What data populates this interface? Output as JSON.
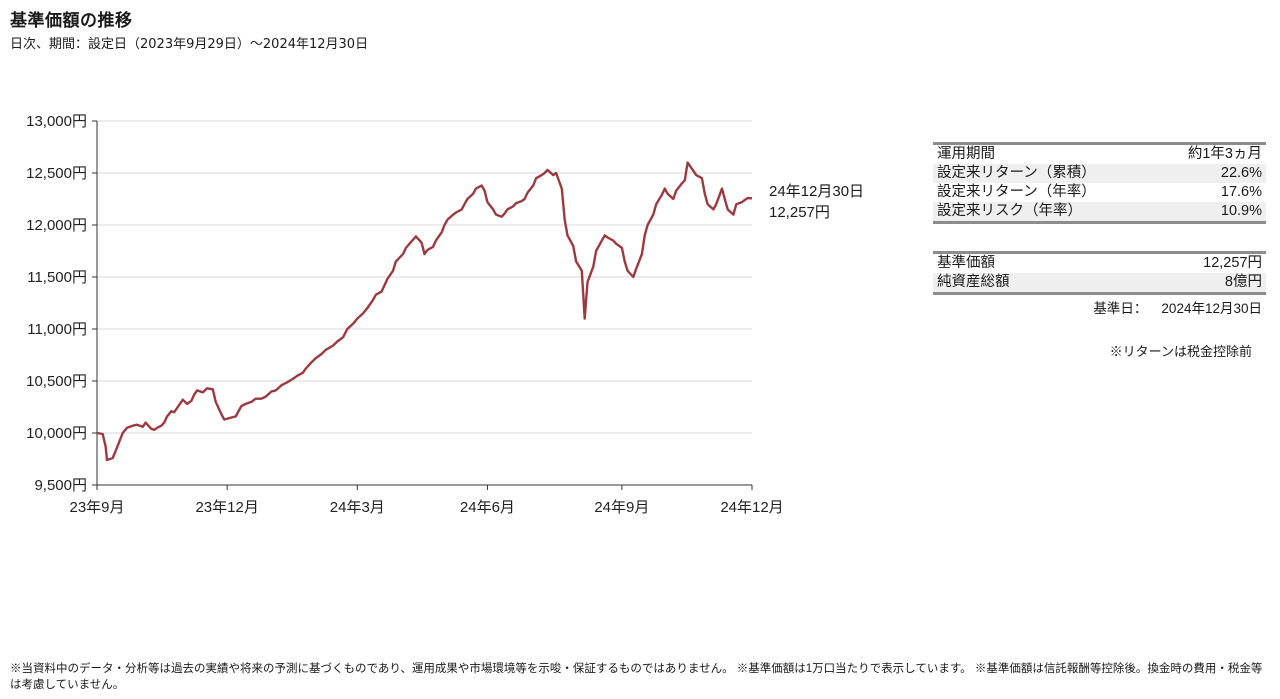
{
  "header": {
    "title": "基準価額の推移",
    "subtitle": "日次、期間：設定日（2023年9月29日）～2024年12月30日"
  },
  "chart_data": {
    "type": "line",
    "y_ticks": [
      9500,
      10000,
      10500,
      11000,
      11500,
      12000,
      12500,
      13000
    ],
    "y_tick_labels": [
      "9,500円",
      "10,000円",
      "10,500円",
      "11,000円",
      "11,500円",
      "12,000円",
      "12,500円",
      "13,000円"
    ],
    "ylim": [
      9500,
      13000
    ],
    "x_range": [
      "2023-09-29",
      "2024-12-30"
    ],
    "x_ticks": [
      {
        "date": "2023-09-29",
        "label": "23年9月"
      },
      {
        "date": "2023-12-29",
        "label": "23年12月"
      },
      {
        "date": "2024-03-29",
        "label": "24年3月"
      },
      {
        "date": "2024-06-28",
        "label": "24年6月"
      },
      {
        "date": "2024-09-30",
        "label": "24年9月"
      },
      {
        "date": "2024-12-30",
        "label": "24年12月"
      }
    ],
    "grid": true,
    "line_color": "#9b3a40",
    "series": [
      {
        "points": [
          [
            "2023-09-29",
            10000
          ],
          [
            "2023-10-03",
            9990
          ],
          [
            "2023-10-05",
            9870
          ],
          [
            "2023-10-06",
            9740
          ],
          [
            "2023-10-10",
            9760
          ],
          [
            "2023-10-13",
            9860
          ],
          [
            "2023-10-17",
            10000
          ],
          [
            "2023-10-20",
            10050
          ],
          [
            "2023-10-24",
            10070
          ],
          [
            "2023-10-27",
            10080
          ],
          [
            "2023-10-31",
            10060
          ],
          [
            "2023-11-02",
            10100
          ],
          [
            "2023-11-06",
            10040
          ],
          [
            "2023-11-08",
            10030
          ],
          [
            "2023-11-10",
            10050
          ],
          [
            "2023-11-13",
            10070
          ],
          [
            "2023-11-15",
            10100
          ],
          [
            "2023-11-17",
            10160
          ],
          [
            "2023-11-20",
            10210
          ],
          [
            "2023-11-22",
            10200
          ],
          [
            "2023-11-24",
            10240
          ],
          [
            "2023-11-28",
            10320
          ],
          [
            "2023-12-01",
            10280
          ],
          [
            "2023-12-04",
            10310
          ],
          [
            "2023-12-06",
            10370
          ],
          [
            "2023-12-08",
            10410
          ],
          [
            "2023-12-12",
            10390
          ],
          [
            "2023-12-15",
            10430
          ],
          [
            "2023-12-19",
            10420
          ],
          [
            "2023-12-21",
            10300
          ],
          [
            "2023-12-25",
            10180
          ],
          [
            "2023-12-27",
            10130
          ],
          [
            "2024-01-04",
            10160
          ],
          [
            "2024-01-08",
            10260
          ],
          [
            "2024-01-11",
            10280
          ],
          [
            "2024-01-15",
            10300
          ],
          [
            "2024-01-18",
            10330
          ],
          [
            "2024-01-22",
            10330
          ],
          [
            "2024-01-25",
            10350
          ],
          [
            "2024-01-29",
            10400
          ],
          [
            "2024-02-01",
            10410
          ],
          [
            "2024-02-05",
            10460
          ],
          [
            "2024-02-08",
            10480
          ],
          [
            "2024-02-13",
            10520
          ],
          [
            "2024-02-16",
            10550
          ],
          [
            "2024-02-20",
            10580
          ],
          [
            "2024-02-22",
            10620
          ],
          [
            "2024-02-26",
            10680
          ],
          [
            "2024-02-29",
            10720
          ],
          [
            "2024-03-04",
            10760
          ],
          [
            "2024-03-07",
            10800
          ],
          [
            "2024-03-12",
            10840
          ],
          [
            "2024-03-15",
            10880
          ],
          [
            "2024-03-19",
            10920
          ],
          [
            "2024-03-22",
            11000
          ],
          [
            "2024-03-26",
            11050
          ],
          [
            "2024-03-29",
            11100
          ],
          [
            "2024-04-02",
            11150
          ],
          [
            "2024-04-05",
            11200
          ],
          [
            "2024-04-09",
            11280
          ],
          [
            "2024-04-11",
            11330
          ],
          [
            "2024-04-15",
            11360
          ],
          [
            "2024-04-17",
            11420
          ],
          [
            "2024-04-19",
            11480
          ],
          [
            "2024-04-23",
            11560
          ],
          [
            "2024-04-25",
            11650
          ],
          [
            "2024-04-30",
            11720
          ],
          [
            "2024-05-02",
            11780
          ],
          [
            "2024-05-07",
            11860
          ],
          [
            "2024-05-09",
            11890
          ],
          [
            "2024-05-13",
            11830
          ],
          [
            "2024-05-15",
            11720
          ],
          [
            "2024-05-17",
            11760
          ],
          [
            "2024-05-21",
            11790
          ],
          [
            "2024-05-23",
            11850
          ],
          [
            "2024-05-27",
            11930
          ],
          [
            "2024-05-29",
            12000
          ],
          [
            "2024-05-31",
            12050
          ],
          [
            "2024-06-04",
            12100
          ],
          [
            "2024-06-06",
            12120
          ],
          [
            "2024-06-10",
            12150
          ],
          [
            "2024-06-12",
            12200
          ],
          [
            "2024-06-14",
            12250
          ],
          [
            "2024-06-18",
            12300
          ],
          [
            "2024-06-20",
            12350
          ],
          [
            "2024-06-24",
            12380
          ],
          [
            "2024-06-26",
            12330
          ],
          [
            "2024-06-28",
            12220
          ],
          [
            "2024-07-02",
            12150
          ],
          [
            "2024-07-04",
            12100
          ],
          [
            "2024-07-08",
            12080
          ],
          [
            "2024-07-10",
            12110
          ],
          [
            "2024-07-12",
            12150
          ],
          [
            "2024-07-16",
            12180
          ],
          [
            "2024-07-18",
            12210
          ],
          [
            "2024-07-22",
            12230
          ],
          [
            "2024-07-24",
            12250
          ],
          [
            "2024-07-26",
            12310
          ],
          [
            "2024-07-30",
            12380
          ],
          [
            "2024-08-01",
            12450
          ],
          [
            "2024-08-05",
            12480
          ],
          [
            "2024-08-07",
            12500
          ],
          [
            "2024-08-09",
            12530
          ],
          [
            "2024-08-13",
            12480
          ],
          [
            "2024-08-15",
            12500
          ],
          [
            "2024-08-19",
            12350
          ],
          [
            "2024-08-21",
            12050
          ],
          [
            "2024-08-23",
            11900
          ],
          [
            "2024-08-27",
            11800
          ],
          [
            "2024-08-29",
            11650
          ],
          [
            "2024-09-02",
            11560
          ],
          [
            "2024-09-04",
            11100
          ],
          [
            "2024-09-06",
            11450
          ],
          [
            "2024-09-10",
            11600
          ],
          [
            "2024-09-12",
            11750
          ],
          [
            "2024-09-16",
            11850
          ],
          [
            "2024-09-18",
            11900
          ],
          [
            "2024-09-20",
            11880
          ],
          [
            "2024-09-24",
            11850
          ],
          [
            "2024-09-26",
            11820
          ],
          [
            "2024-09-30",
            11780
          ],
          [
            "2024-10-02",
            11650
          ],
          [
            "2024-10-04",
            11560
          ],
          [
            "2024-10-08",
            11500
          ],
          [
            "2024-10-10",
            11580
          ],
          [
            "2024-10-14",
            11720
          ],
          [
            "2024-10-16",
            11900
          ],
          [
            "2024-10-18",
            12000
          ],
          [
            "2024-10-22",
            12100
          ],
          [
            "2024-10-24",
            12200
          ],
          [
            "2024-10-28",
            12290
          ],
          [
            "2024-10-30",
            12350
          ],
          [
            "2024-11-01",
            12300
          ],
          [
            "2024-11-05",
            12250
          ],
          [
            "2024-11-07",
            12330
          ],
          [
            "2024-11-11",
            12400
          ],
          [
            "2024-11-13",
            12430
          ],
          [
            "2024-11-15",
            12600
          ],
          [
            "2024-11-19",
            12520
          ],
          [
            "2024-11-21",
            12480
          ],
          [
            "2024-11-25",
            12450
          ],
          [
            "2024-11-27",
            12300
          ],
          [
            "2024-11-29",
            12200
          ],
          [
            "2024-12-03",
            12150
          ],
          [
            "2024-12-05",
            12200
          ],
          [
            "2024-12-09",
            12350
          ],
          [
            "2024-12-11",
            12250
          ],
          [
            "2024-12-13",
            12150
          ],
          [
            "2024-12-17",
            12100
          ],
          [
            "2024-12-19",
            12200
          ],
          [
            "2024-12-23",
            12220
          ],
          [
            "2024-12-25",
            12240
          ],
          [
            "2024-12-27",
            12260
          ],
          [
            "2024-12-30",
            12257
          ]
        ]
      }
    ],
    "end_annotation": {
      "date": "24年12月30日",
      "value": "12,257円"
    }
  },
  "stats_table": {
    "rows": [
      {
        "label": "運用期間",
        "value": "約1年3ヵ月"
      },
      {
        "label": "設定来リターン（累積）",
        "value": "22.6%"
      },
      {
        "label": "設定来リターン（年率）",
        "value": "17.6%"
      },
      {
        "label": "設定来リスク（年率）",
        "value": "10.9%"
      }
    ]
  },
  "nav_table": {
    "rows": [
      {
        "label": "基準価額",
        "value": "12,257円"
      },
      {
        "label": "純資産総額",
        "value": "8億円"
      }
    ],
    "base_date_label": "基準日：",
    "base_date": "2024年12月30日"
  },
  "notes": {
    "return_note": "※リターンは税金控除前",
    "disclaimer": "※当資料中のデータ・分析等は過去の実績や将来の予測に基づくものであり、運用成果や市場環境等を示唆・保証するものではありません。 ※基準価額は1万口当たりで表示しています。 ※基準価額は信託報酬等控除後。換金時の費用・税金等は考慮していません。"
  }
}
